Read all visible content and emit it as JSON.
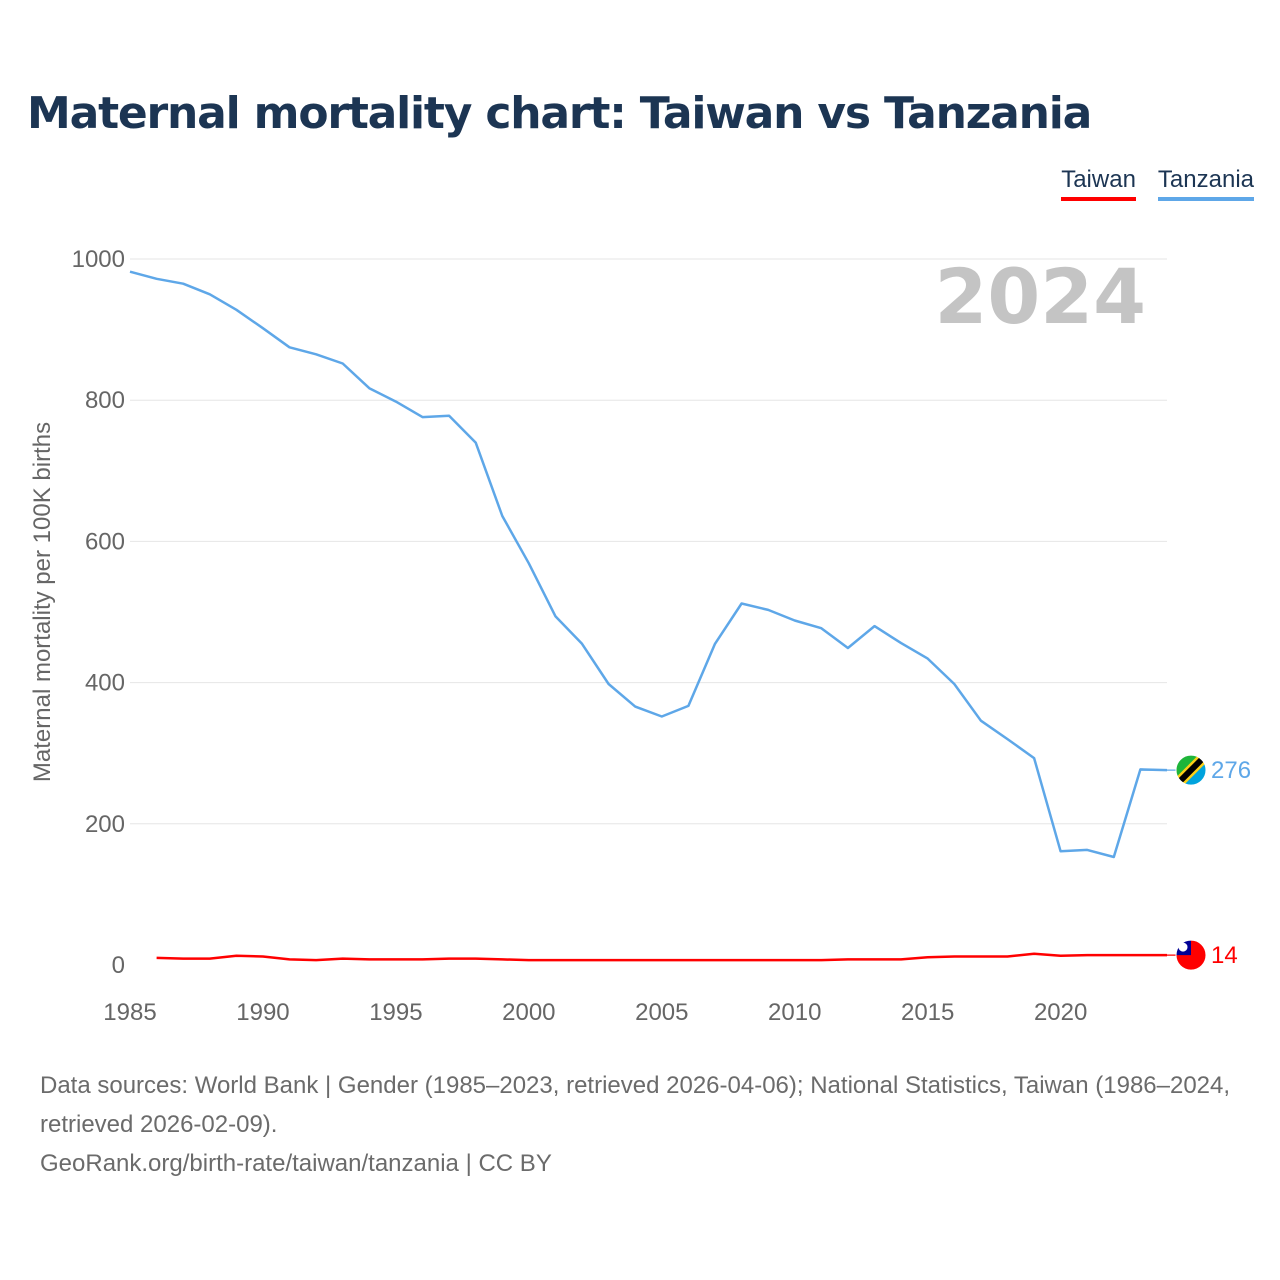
{
  "title": "Maternal mortality chart: Taiwan vs Tanzania",
  "legend": {
    "taiwan": "Taiwan",
    "tanzania": "Tanzania"
  },
  "year_watermark": "2024",
  "footer": {
    "sources": "Data sources: World Bank | Gender (1985–2023, retrieved 2026-04-06); National Statistics, Taiwan (1986–2024, retrieved 2026-02-09).",
    "link": "GeoRank.org/birth-rate/taiwan/tanzania",
    "license": " | CC BY"
  },
  "colors": {
    "taiwan": "#ff0000",
    "tanzania": "#5ea7e8",
    "title": "#1c3553",
    "grid": "#e6e6e6",
    "axis_text": "#666666"
  },
  "chart_data": {
    "type": "line",
    "title": "Maternal mortality chart: Taiwan vs Tanzania",
    "xlabel": "",
    "ylabel": "Maternal mortality per 100K births",
    "xlim": [
      1985,
      2024
    ],
    "ylim": [
      0,
      1000
    ],
    "x_ticks": [
      1985,
      1990,
      1995,
      2000,
      2005,
      2010,
      2015,
      2020
    ],
    "y_ticks": [
      0,
      200,
      400,
      600,
      800,
      1000
    ],
    "series": [
      {
        "name": "Tanzania",
        "end_label": "276",
        "x": [
          1985,
          1986,
          1987,
          1988,
          1989,
          1990,
          1991,
          1992,
          1993,
          1994,
          1995,
          1996,
          1997,
          1998,
          1999,
          2000,
          2001,
          2002,
          2003,
          2004,
          2005,
          2006,
          2007,
          2008,
          2009,
          2010,
          2011,
          2012,
          2013,
          2014,
          2015,
          2016,
          2017,
          2018,
          2019,
          2020,
          2021,
          2022,
          2023,
          2024
        ],
        "values": [
          982,
          972,
          965,
          950,
          928,
          902,
          875,
          865,
          852,
          817,
          798,
          776,
          778,
          740,
          636,
          569,
          494,
          455,
          398,
          366,
          352,
          367,
          455,
          512,
          503,
          488,
          477,
          449,
          480,
          456,
          434,
          398,
          346,
          320,
          293,
          161,
          163,
          153,
          277,
          276
        ]
      },
      {
        "name": "Taiwan",
        "end_label": "14",
        "x": [
          1986,
          1987,
          1988,
          1989,
          1990,
          1991,
          1992,
          1993,
          1994,
          1995,
          1996,
          1997,
          1998,
          1999,
          2000,
          2001,
          2002,
          2003,
          2004,
          2005,
          2006,
          2007,
          2008,
          2009,
          2010,
          2011,
          2012,
          2013,
          2014,
          2015,
          2016,
          2017,
          2018,
          2019,
          2020,
          2021,
          2022,
          2023,
          2024
        ],
        "values": [
          10,
          9,
          9,
          13,
          12,
          8,
          7,
          9,
          8,
          8,
          8,
          9,
          9,
          8,
          7,
          7,
          7,
          7,
          7,
          7,
          7,
          7,
          7,
          7,
          7,
          7,
          8,
          8,
          8,
          11,
          12,
          12,
          12,
          16,
          13,
          14,
          14,
          14,
          14
        ]
      }
    ]
  }
}
